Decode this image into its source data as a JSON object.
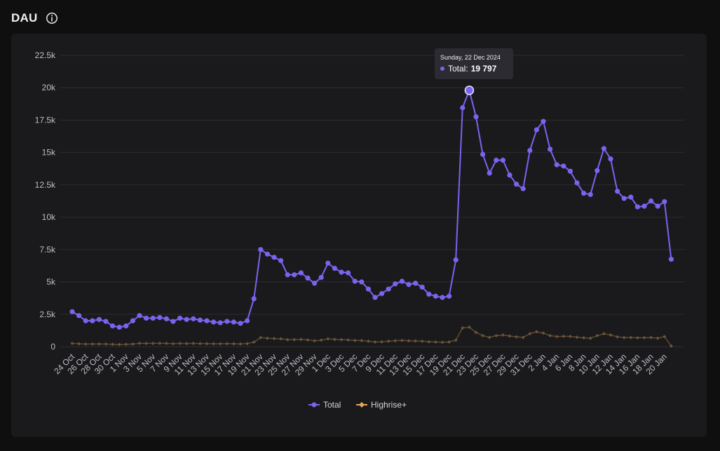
{
  "header": {
    "title": "DAU",
    "info_icon": "info-circle-icon"
  },
  "tooltip": {
    "date": "Sunday, 22 Dec 2024",
    "label": "Total:",
    "value": "19 797"
  },
  "colors": {
    "total": "#7b63ee",
    "highrise": "#e0a95a",
    "background": "#1a1a1d",
    "grid": "#2d2d31"
  },
  "chart_data": {
    "type": "line",
    "ylim": [
      0,
      22500
    ],
    "yticks": [
      0,
      2500,
      5000,
      7500,
      10000,
      12500,
      15000,
      17500,
      20000,
      22500
    ],
    "ytick_labels": [
      "0",
      "2.5k",
      "5k",
      "7.5k",
      "10k",
      "12.5k",
      "15k",
      "17.5k",
      "20k",
      "22.5k"
    ],
    "xtick_labels": [
      "24 Oct",
      "26 Oct",
      "28 Oct",
      "30 Oct",
      "1 Nov",
      "3 Nov",
      "5 Nov",
      "7 Nov",
      "9 Nov",
      "11 Nov",
      "13 Nov",
      "15 Nov",
      "17 Nov",
      "19 Nov",
      "21 Nov",
      "23 Nov",
      "25 Nov",
      "27 Nov",
      "29 Nov",
      "1 Dec",
      "3 Dec",
      "5 Dec",
      "7 Dec",
      "9 Dec",
      "11 Dec",
      "13 Dec",
      "15 Dec",
      "17 Dec",
      "19 Dec",
      "21 Dec",
      "23 Dec",
      "25 Dec",
      "27 Dec",
      "29 Dec",
      "31 Dec",
      "2 Jan",
      "4 Jan",
      "6 Jan",
      "8 Jan",
      "10 Jan",
      "12 Jan",
      "14 Jan",
      "16 Jan",
      "18 Jan",
      "20 Jan"
    ],
    "grid": true,
    "legend_position": "bottom",
    "series": [
      {
        "name": "Total",
        "values": [
          2700,
          2400,
          2000,
          2000,
          2100,
          1950,
          1600,
          1500,
          1600,
          2000,
          2400,
          2200,
          2200,
          2250,
          2150,
          1950,
          2200,
          2100,
          2150,
          2050,
          2000,
          1900,
          1850,
          1950,
          1900,
          1800,
          2000,
          3700,
          7500,
          7150,
          6900,
          6650,
          5550,
          5550,
          5700,
          5300,
          4900,
          5350,
          6450,
          6050,
          5750,
          5700,
          5050,
          5000,
          4450,
          3800,
          4100,
          4450,
          4850,
          5050,
          4800,
          4900,
          4600,
          4050,
          3900,
          3800,
          3900,
          6700,
          18450,
          19797,
          17750,
          14850,
          13400,
          14400,
          14400,
          13250,
          12550,
          12200,
          15150,
          16750,
          17400,
          15250,
          14050,
          13950,
          13550,
          12650,
          11850,
          11750,
          13600,
          15300,
          14500,
          12000,
          11450,
          11550,
          10800,
          10850,
          11250,
          10850,
          11200,
          6750
        ]
      },
      {
        "name": "Highrise+",
        "values": [
          250,
          220,
          200,
          200,
          210,
          200,
          180,
          170,
          180,
          200,
          260,
          250,
          250,
          260,
          250,
          230,
          250,
          240,
          250,
          240,
          230,
          220,
          220,
          230,
          220,
          210,
          240,
          350,
          700,
          650,
          620,
          600,
          540,
          540,
          560,
          520,
          450,
          500,
          600,
          560,
          540,
          520,
          480,
          470,
          420,
          360,
          380,
          420,
          460,
          480,
          450,
          440,
          420,
          380,
          360,
          340,
          360,
          500,
          1450,
          1500,
          1100,
          850,
          720,
          850,
          900,
          820,
          760,
          720,
          1000,
          1150,
          1050,
          850,
          780,
          800,
          790,
          730,
          680,
          650,
          850,
          1000,
          900,
          760,
          700,
          700,
          680,
          690,
          700,
          650,
          780,
          50
        ]
      }
    ]
  },
  "legend": {
    "total_label": "Total",
    "highrise_label": "Highrise+"
  }
}
